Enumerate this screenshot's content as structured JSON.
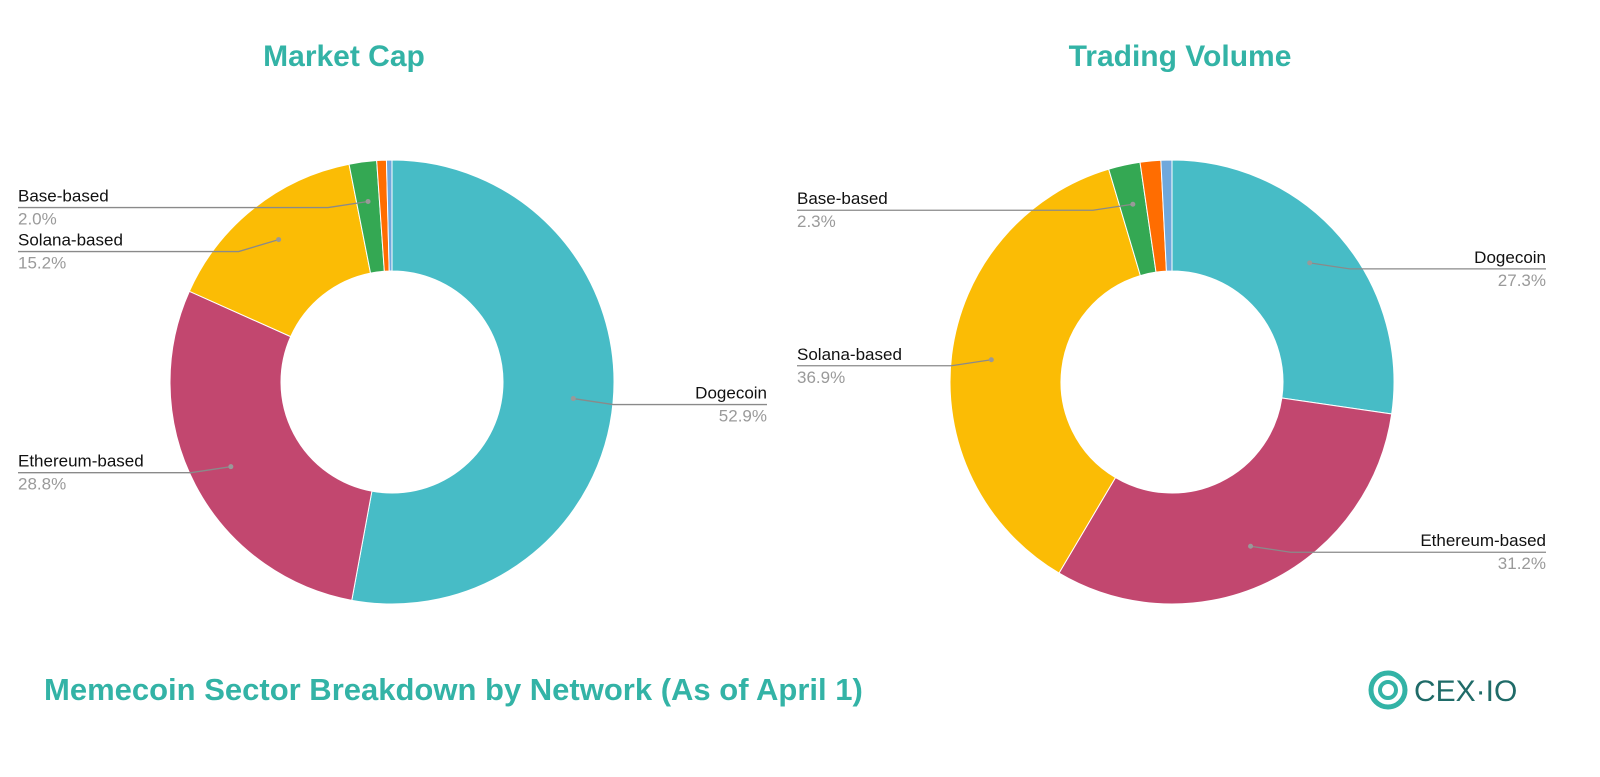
{
  "title": "Memecoin Sector Breakdown by Network (As of April 1)",
  "logo": "CEX·IO",
  "chart_data": [
    {
      "type": "donut",
      "title": "Market Cap",
      "categories": [
        "Dogecoin",
        "Ethereum-based",
        "Solana-based",
        "Base-based",
        null,
        null
      ],
      "values": [
        52.9,
        28.8,
        15.2,
        2.0,
        0.7,
        0.4
      ],
      "value_labels": [
        "52.9%",
        "28.8%",
        "15.2%",
        "2.0%",
        null,
        null
      ],
      "colors": [
        "#47bcc6",
        "#c2476f",
        "#fbbc05",
        "#34a853",
        "#ff6d01",
        "#6fa8dc"
      ]
    },
    {
      "type": "donut",
      "title": "Trading Volume",
      "categories": [
        "Dogecoin",
        "Ethereum-based",
        "Solana-based",
        "Base-based",
        null,
        null
      ],
      "values": [
        27.3,
        31.2,
        36.9,
        2.3,
        1.5,
        0.8
      ],
      "value_labels": [
        "27.3%",
        "31.2%",
        "36.9%",
        "2.3%",
        null,
        null
      ],
      "colors": [
        "#47bcc6",
        "#c2476f",
        "#fbbc05",
        "#34a853",
        "#ff6d01",
        "#6fa8dc"
      ]
    }
  ]
}
